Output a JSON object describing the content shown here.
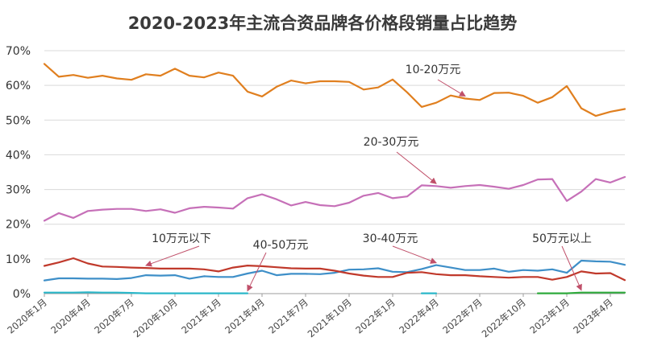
{
  "chart_data": {
    "type": "line",
    "title": "2020-2023年主流合资品牌各价格段销量占比趋势",
    "xlabel": "",
    "ylabel": "",
    "ylim": [
      0,
      70
    ],
    "y_ticks": [
      "0%",
      "10%",
      "20%",
      "30%",
      "40%",
      "50%",
      "60%",
      "70%"
    ],
    "grid": true,
    "x_tick_labels": [
      "2020年1月",
      "2020年4月",
      "2020年7月",
      "2020年10月",
      "2021年1月",
      "2021年4月",
      "2021年7月",
      "2021年10月",
      "2022年1月",
      "2022年4月",
      "2022年7月",
      "2022年10月",
      "2023年1月",
      "2023年4月"
    ],
    "n_points": 41,
    "series": [
      {
        "name": "10-20万元",
        "color": "#e07f1f",
        "values": [
          66.2,
          62.5,
          63.0,
          62.2,
          62.8,
          62.0,
          61.6,
          63.2,
          62.8,
          64.8,
          62.8,
          62.3,
          63.7,
          62.8,
          58.2,
          56.8,
          59.6,
          61.4,
          60.6,
          61.2,
          61.2,
          61.0,
          58.8,
          59.4,
          61.7,
          58.0,
          53.8,
          55.0,
          57.1,
          56.2,
          55.8,
          57.8,
          57.9,
          57.0,
          55.0,
          56.6,
          59.8,
          53.4,
          51.2,
          52.4,
          53.2
        ]
      },
      {
        "name": "20-30万元",
        "color": "#c670b8",
        "values": [
          21.0,
          23.2,
          21.8,
          23.8,
          24.2,
          24.4,
          24.4,
          23.8,
          24.3,
          23.3,
          24.6,
          25.0,
          24.8,
          24.5,
          27.5,
          28.6,
          27.2,
          25.4,
          26.4,
          25.5,
          25.2,
          26.2,
          28.2,
          29.0,
          27.5,
          28.0,
          31.2,
          31.0,
          30.5,
          31.0,
          31.3,
          30.8,
          30.2,
          31.3,
          32.9,
          33.0,
          26.7,
          29.4,
          33.0,
          32.0,
          33.6
        ]
      },
      {
        "name": "30-40万元",
        "color": "#3e8fc8",
        "values": [
          3.8,
          4.4,
          4.4,
          4.3,
          4.3,
          4.2,
          4.5,
          5.3,
          5.2,
          5.3,
          4.3,
          5.0,
          4.8,
          4.8,
          5.8,
          6.6,
          5.3,
          5.7,
          5.7,
          5.6,
          6.0,
          6.9,
          7.0,
          7.3,
          6.3,
          6.2,
          7.1,
          8.2,
          7.5,
          6.8,
          6.8,
          7.2,
          6.3,
          6.8,
          6.6,
          7.0,
          6.0,
          9.5,
          9.3,
          9.2,
          8.3
        ]
      },
      {
        "name": "10万元以下",
        "color": "#c0392b",
        "values": [
          8.0,
          9.0,
          10.2,
          8.7,
          7.8,
          7.7,
          7.5,
          7.4,
          7.2,
          7.2,
          7.2,
          7.0,
          6.4,
          7.5,
          8.1,
          7.9,
          7.6,
          7.3,
          7.2,
          7.2,
          6.6,
          5.8,
          5.2,
          4.8,
          4.8,
          6.0,
          6.2,
          5.6,
          5.3,
          5.3,
          5.0,
          4.8,
          4.6,
          4.8,
          4.8,
          4.0,
          4.8,
          6.4,
          5.8,
          5.9,
          3.9
        ]
      },
      {
        "name": "40-50万元",
        "color": "#2bb7c9",
        "values": [
          0.3,
          0.3,
          0.3,
          0.4,
          0.3,
          0.3,
          0.2,
          0.1,
          0.1,
          0.1,
          0.1,
          0.1,
          0.1,
          0.1,
          0.1,
          null,
          null,
          null,
          null,
          null,
          null,
          null,
          null,
          null,
          null,
          null,
          0.1,
          0.1,
          null,
          null,
          null,
          null,
          null,
          null,
          null,
          null,
          null,
          null,
          null,
          null,
          null
        ]
      },
      {
        "name": "50万元以上",
        "color": "#2faa3c",
        "values": [
          null,
          null,
          null,
          null,
          null,
          null,
          null,
          null,
          null,
          null,
          null,
          null,
          null,
          null,
          null,
          null,
          null,
          null,
          null,
          null,
          null,
          null,
          null,
          null,
          null,
          null,
          null,
          null,
          null,
          null,
          null,
          null,
          null,
          null,
          0.1,
          0.1,
          0.1,
          0.3,
          0.3,
          0.3,
          0.3
        ]
      }
    ],
    "annotations": [
      {
        "text": "10-20万元",
        "series": "10-20万元",
        "target_index": 29
      },
      {
        "text": "20-30万元",
        "series": "20-30万元",
        "target_index": 27
      },
      {
        "text": "10万元以下",
        "series": "10万元以下",
        "target_index": 7
      },
      {
        "text": "40-50万元",
        "series": "40-50万元",
        "target_index": 14
      },
      {
        "text": "30-40万元",
        "series": "30-40万元",
        "target_index": 27
      },
      {
        "text": "50万元以上",
        "series": "50万元以上",
        "target_index": 37
      }
    ]
  }
}
